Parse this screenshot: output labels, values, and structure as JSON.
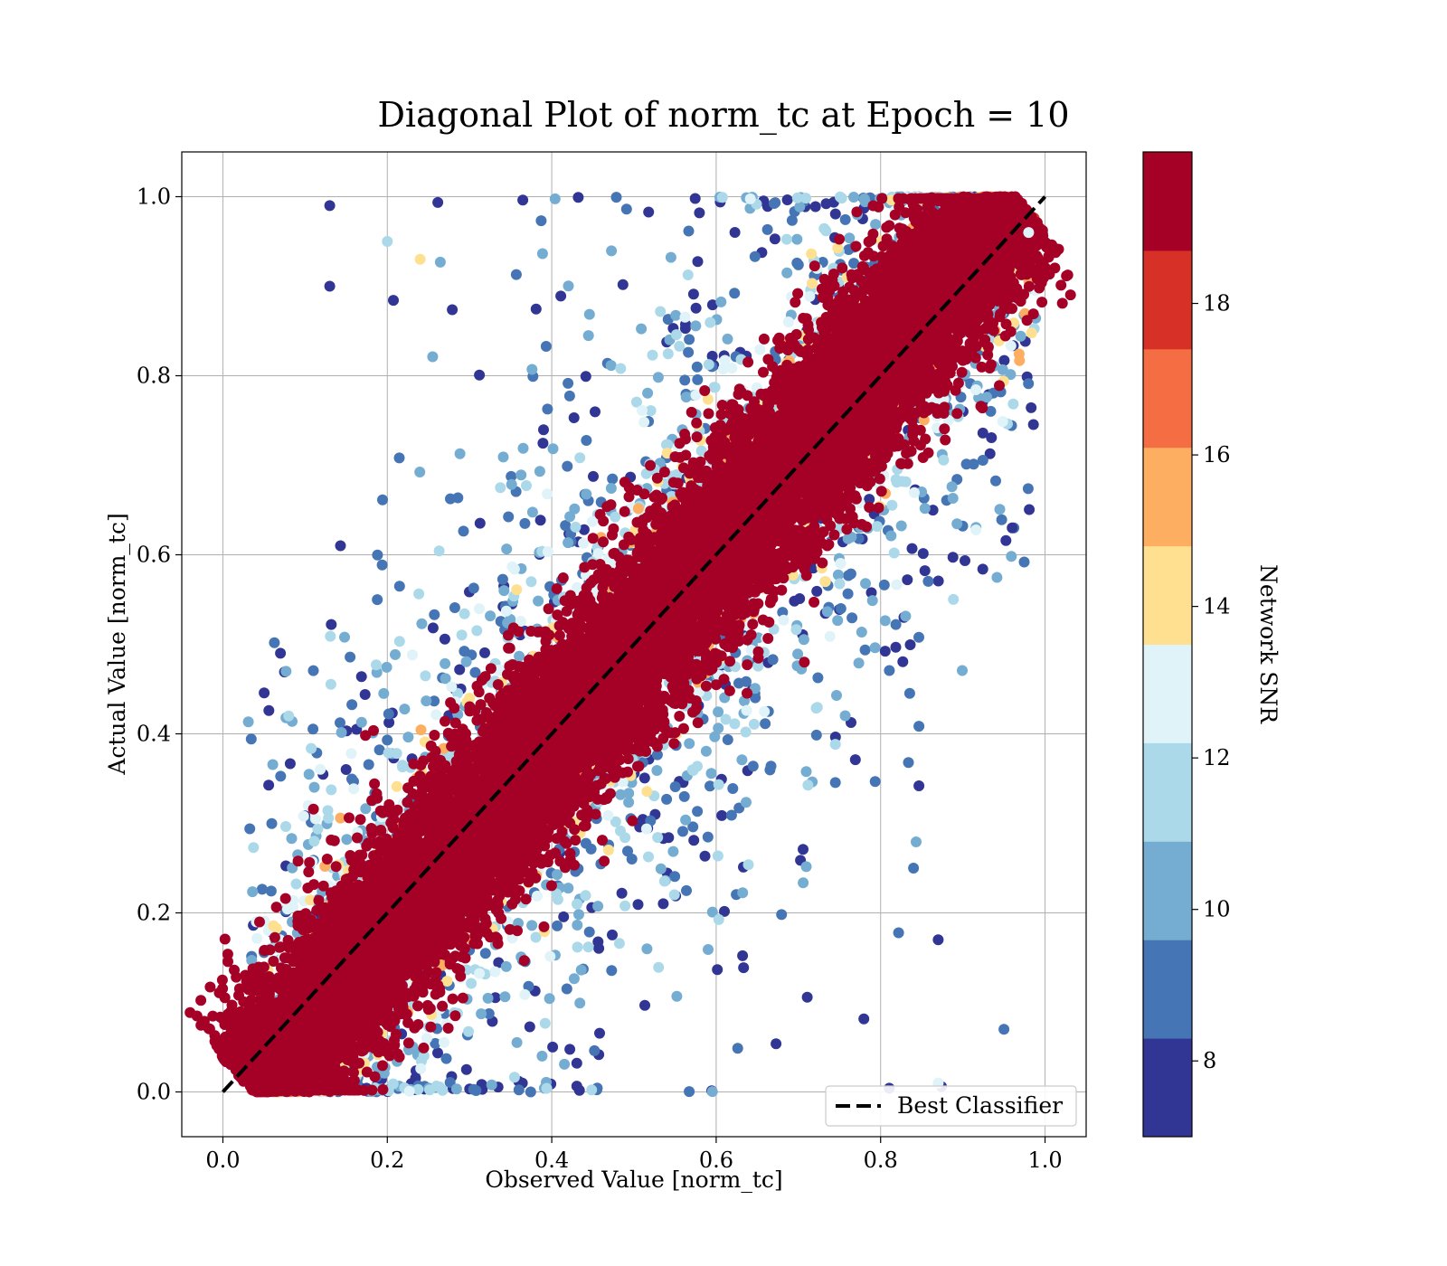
{
  "chart_data": {
    "type": "scatter",
    "title": "Diagonal Plot of norm_tc at Epoch = 10",
    "xlabel": "Observed Value [norm_tc]",
    "ylabel": "Actual Value [norm_tc]",
    "xlim": [
      -0.05,
      1.05
    ],
    "ylim": [
      -0.05,
      1.05
    ],
    "xticks": [
      "0.0",
      "0.2",
      "0.4",
      "0.6",
      "0.8",
      "1.0"
    ],
    "yticks": [
      "0.0",
      "0.2",
      "0.4",
      "0.6",
      "0.8",
      "1.0"
    ],
    "grid": true,
    "legend": {
      "position": "lower-right",
      "entries": [
        "Best Classifier"
      ]
    },
    "reference_line": {
      "name": "Best Classifier",
      "style": "dashed",
      "color": "#000000",
      "x": [
        0,
        1
      ],
      "y": [
        0,
        1
      ]
    },
    "colorbar": {
      "label": "Network SNR",
      "range": [
        7,
        20
      ],
      "ticks": [
        "8",
        "10",
        "12",
        "14",
        "16",
        "18"
      ],
      "bins": [
        {
          "from": 7,
          "to": 8.3,
          "color": "#313695"
        },
        {
          "from": 8.3,
          "to": 9.6,
          "color": "#4575b4"
        },
        {
          "from": 9.6,
          "to": 10.9,
          "color": "#74add1"
        },
        {
          "from": 10.9,
          "to": 12.2,
          "color": "#abd9e9"
        },
        {
          "from": 12.2,
          "to": 13.5,
          "color": "#e0f3f8"
        },
        {
          "from": 13.5,
          "to": 14.8,
          "color": "#fee090"
        },
        {
          "from": 14.8,
          "to": 16.1,
          "color": "#fdae61"
        },
        {
          "from": 16.1,
          "to": 17.4,
          "color": "#f46d43"
        },
        {
          "from": 17.4,
          "to": 18.7,
          "color": "#d73027"
        },
        {
          "from": 18.7,
          "to": 20,
          "color": "#a50026"
        }
      ]
    },
    "series": [
      {
        "distribution": "dense band along diagonal; spread widens as SNR decreases",
        "sample_points": [
          [
            0.05,
            0.02,
            19.5
          ],
          [
            0.12,
            0.1,
            19.6
          ],
          [
            0.25,
            0.26,
            19.4
          ],
          [
            0.4,
            0.42,
            19.5
          ],
          [
            0.55,
            0.53,
            19.6
          ],
          [
            0.7,
            0.72,
            19.4
          ],
          [
            0.85,
            0.86,
            19.5
          ],
          [
            0.93,
            0.95,
            19.6
          ],
          [
            0.13,
            0.99,
            7.5
          ],
          [
            0.13,
            0.9,
            7.8
          ],
          [
            0.2,
            0.95,
            11.5
          ],
          [
            0.24,
            0.93,
            14.5
          ],
          [
            0.95,
            0.07,
            8.5
          ],
          [
            0.87,
            0.17,
            7.5
          ],
          [
            0.84,
            0.25,
            9.0
          ],
          [
            0.87,
            0.01,
            12.5
          ],
          [
            0.98,
            0.96,
            13.0
          ],
          [
            0.96,
            0.63,
            7.8
          ],
          [
            0.07,
            0.49,
            7.6
          ],
          [
            0.08,
            0.42,
            11.0
          ]
        ]
      }
    ]
  }
}
